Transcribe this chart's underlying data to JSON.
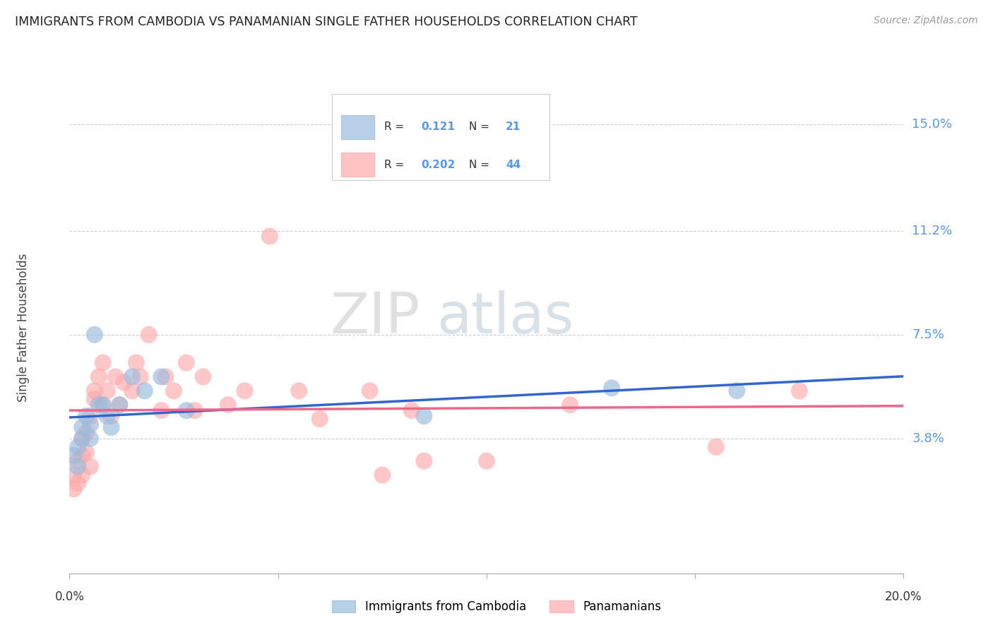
{
  "title": "IMMIGRANTS FROM CAMBODIA VS PANAMANIAN SINGLE FATHER HOUSEHOLDS CORRELATION CHART",
  "source": "Source: ZipAtlas.com",
  "ylabel": "Single Father Households",
  "y_ticks": [
    0.038,
    0.075,
    0.112,
    0.15
  ],
  "y_tick_labels": [
    "3.8%",
    "7.5%",
    "11.2%",
    "15.0%"
  ],
  "x_min": 0.0,
  "x_max": 0.2,
  "y_min": -0.01,
  "y_max": 0.165,
  "legend1_label": "Immigrants from Cambodia",
  "legend2_label": "Panamanians",
  "R1": 0.121,
  "N1": 21,
  "R2": 0.202,
  "N2": 44,
  "blue_color": "#99BBDD",
  "pink_color": "#FFAAAA",
  "blue_line_color": "#3366CC",
  "pink_line_color": "#EE6688",
  "watermark_zip": "ZIP",
  "watermark_atlas": "atlas",
  "blue_points_x": [
    0.001,
    0.002,
    0.002,
    0.003,
    0.003,
    0.004,
    0.005,
    0.005,
    0.006,
    0.007,
    0.008,
    0.009,
    0.01,
    0.012,
    0.015,
    0.018,
    0.022,
    0.028,
    0.085,
    0.13,
    0.16
  ],
  "blue_points_y": [
    0.032,
    0.028,
    0.035,
    0.038,
    0.042,
    0.046,
    0.038,
    0.043,
    0.075,
    0.05,
    0.05,
    0.046,
    0.042,
    0.05,
    0.06,
    0.055,
    0.06,
    0.048,
    0.046,
    0.056,
    0.055
  ],
  "pink_points_x": [
    0.001,
    0.001,
    0.002,
    0.002,
    0.003,
    0.003,
    0.003,
    0.004,
    0.004,
    0.005,
    0.005,
    0.006,
    0.006,
    0.007,
    0.008,
    0.008,
    0.009,
    0.01,
    0.011,
    0.012,
    0.013,
    0.015,
    0.016,
    0.017,
    0.019,
    0.022,
    0.023,
    0.025,
    0.028,
    0.03,
    0.032,
    0.038,
    0.042,
    0.048,
    0.055,
    0.06,
    0.072,
    0.075,
    0.082,
    0.085,
    0.1,
    0.12,
    0.155,
    0.175
  ],
  "pink_points_y": [
    0.025,
    0.02,
    0.03,
    0.022,
    0.032,
    0.038,
    0.025,
    0.04,
    0.033,
    0.028,
    0.046,
    0.052,
    0.055,
    0.06,
    0.065,
    0.05,
    0.055,
    0.046,
    0.06,
    0.05,
    0.058,
    0.055,
    0.065,
    0.06,
    0.075,
    0.048,
    0.06,
    0.055,
    0.065,
    0.048,
    0.06,
    0.05,
    0.055,
    0.11,
    0.055,
    0.045,
    0.055,
    0.025,
    0.048,
    0.03,
    0.03,
    0.05,
    0.035,
    0.055
  ]
}
